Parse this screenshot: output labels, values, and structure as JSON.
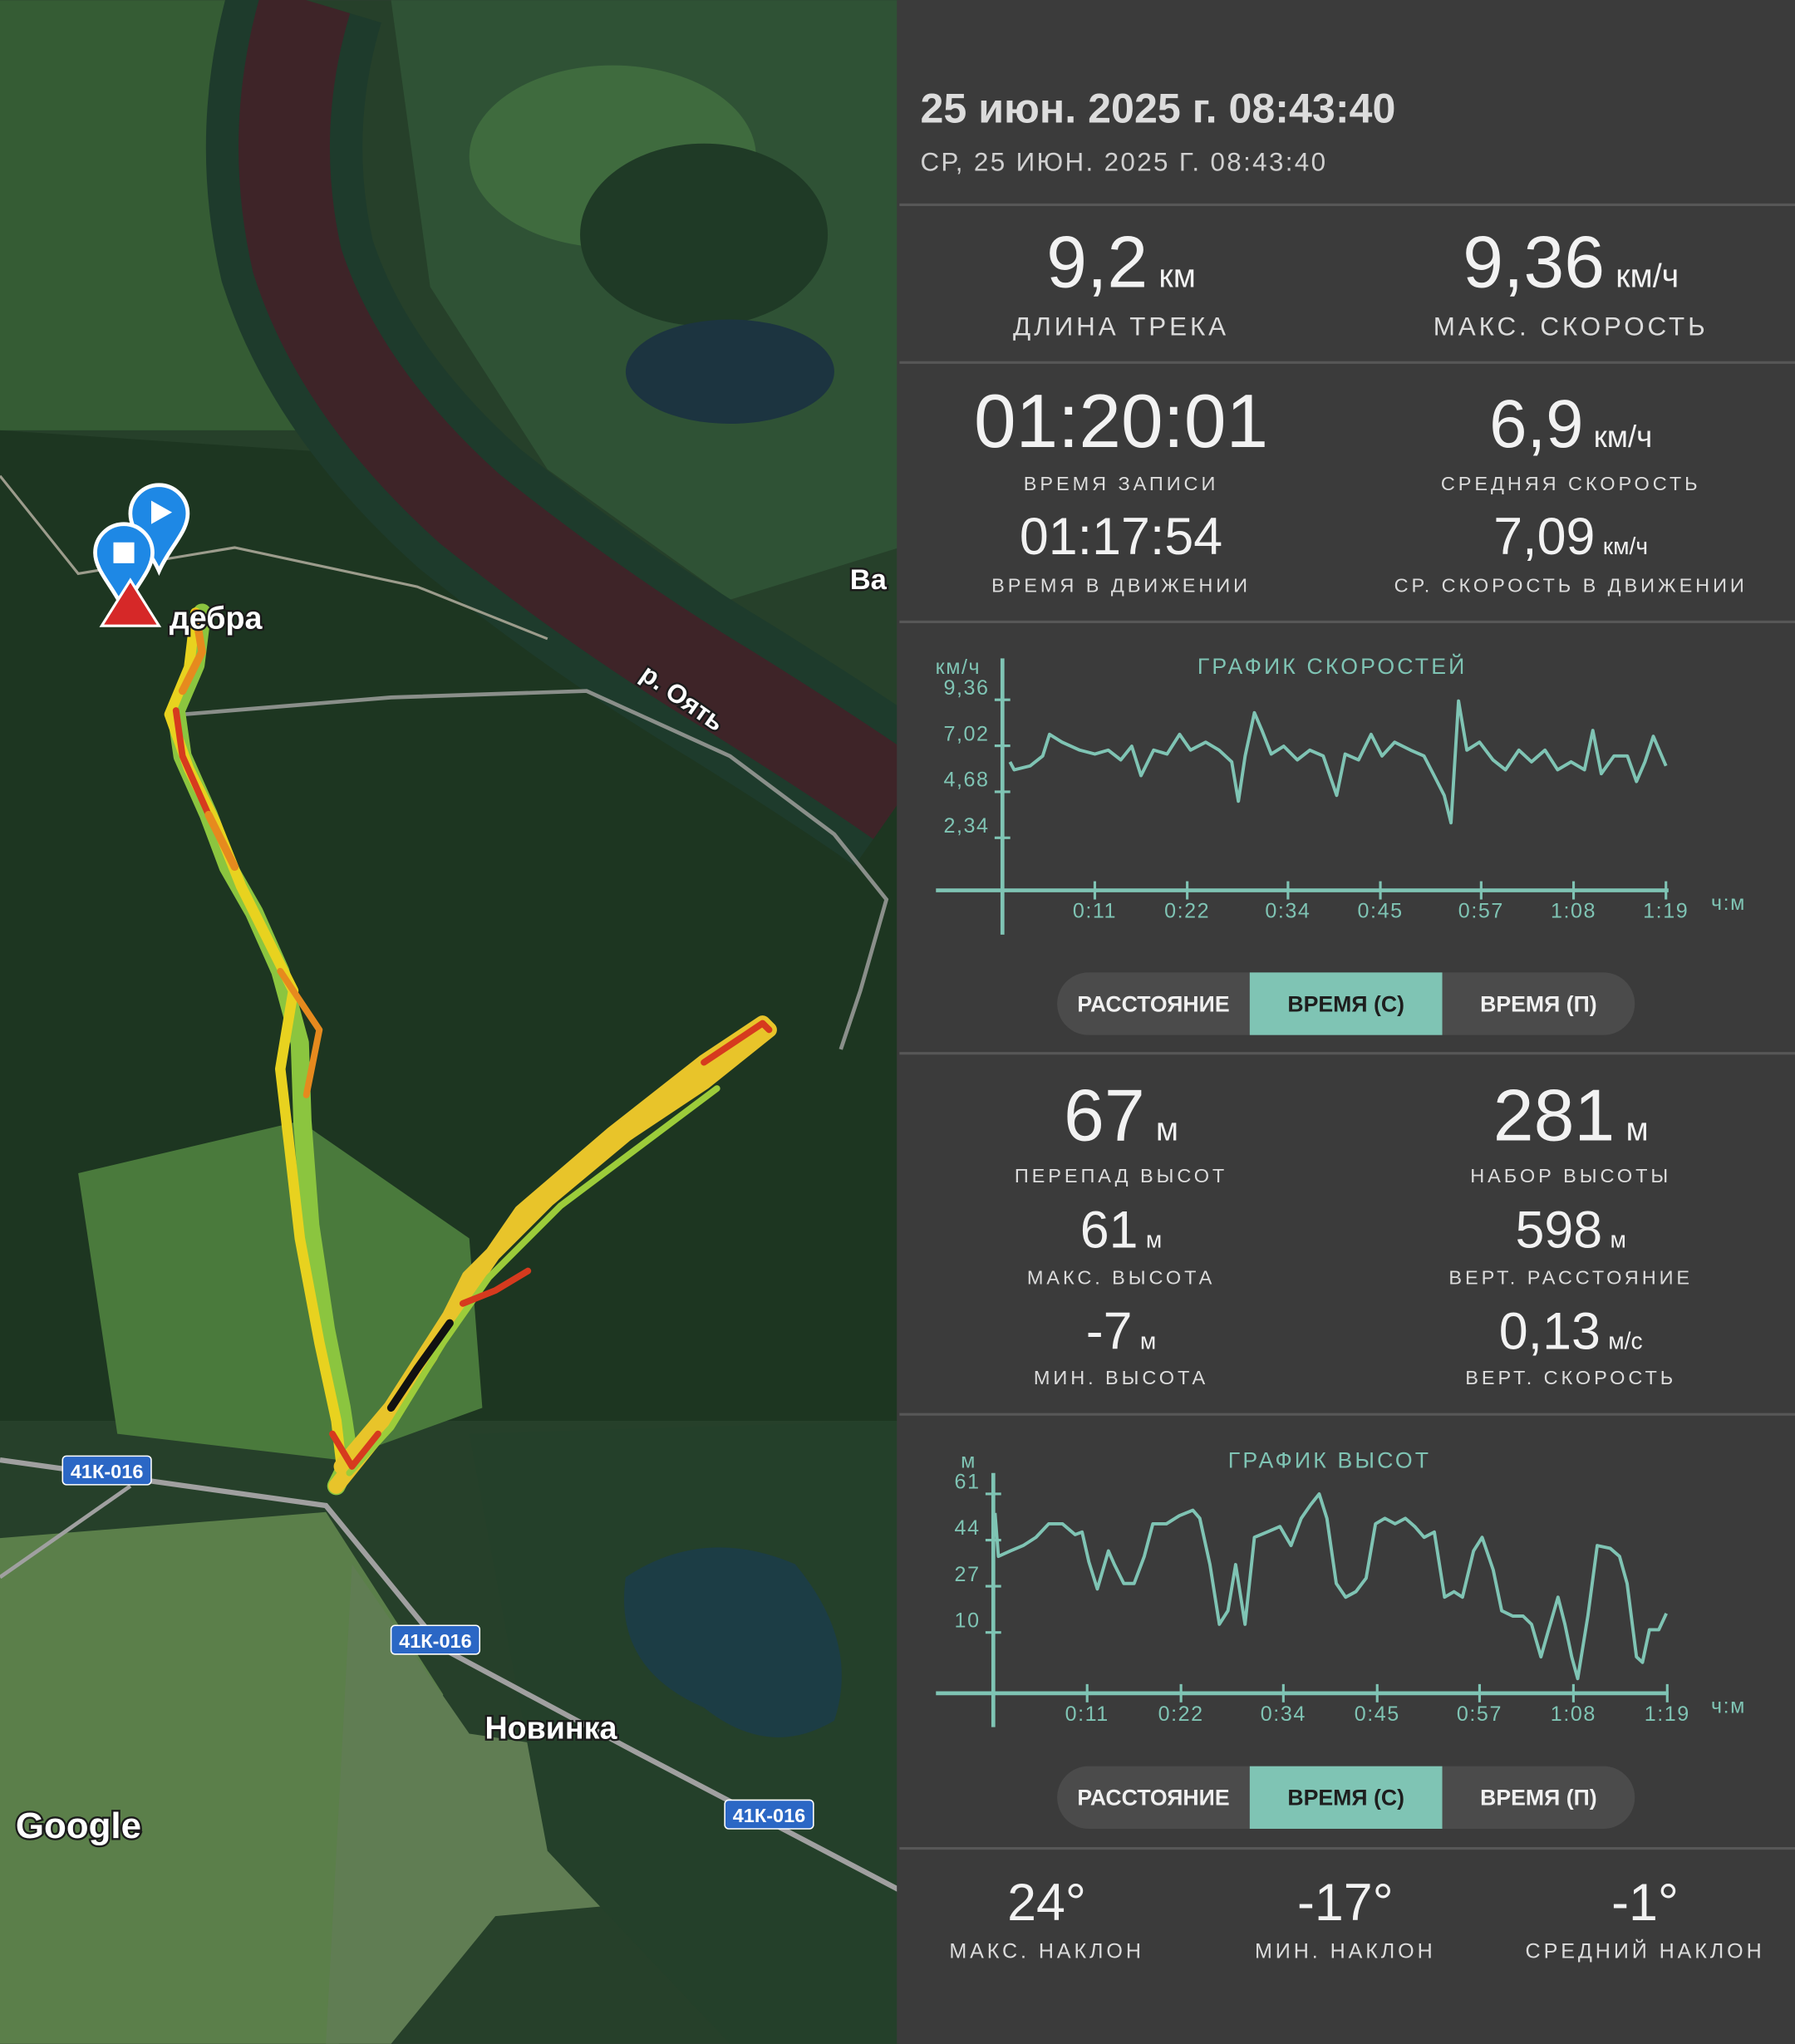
{
  "header": {
    "title": "25 июн. 2025 г. 08:43:40",
    "subtitle": "СР, 25 ИЮН. 2025 Г. 08:43:40"
  },
  "track_stats": [
    {
      "value": "9,2",
      "unit": "км",
      "label": "ДЛИНА ТРЕКА"
    },
    {
      "value": "9,36",
      "unit": "км/ч",
      "label": "МАКС. СКОРОСТЬ"
    }
  ],
  "time_stats": [
    {
      "value": "01:20:01",
      "label": "ВРЕМЯ ЗАПИСИ"
    },
    {
      "value": "6,9",
      "unit": "км/ч",
      "label": "СРЕДНЯЯ СКОРОСТЬ"
    },
    {
      "value": "01:17:54",
      "label": "ВРЕМЯ В ДВИЖЕНИИ"
    },
    {
      "value": "7,09",
      "unit": "км/ч",
      "label": "СР. СКОРОСТЬ В ДВИЖЕНИИ"
    }
  ],
  "elevation_stats": [
    {
      "value": "67",
      "unit": "м",
      "label": "ПЕРЕПАД ВЫСОТ"
    },
    {
      "value": "281",
      "unit": "м",
      "label": "НАБОР ВЫСОТЫ"
    },
    {
      "value": "61",
      "unit": "м",
      "label": "МАКС. ВЫСОТА"
    },
    {
      "value": "598",
      "unit": "м",
      "label": "ВЕРТ. РАССТОЯНИЕ"
    },
    {
      "value": "-7",
      "unit": "м",
      "label": "МИН. ВЫСОТА"
    },
    {
      "value": "0,13",
      "unit": "м/с",
      "label": "ВЕРТ. СКОРОСТЬ"
    }
  ],
  "slope_stats": [
    {
      "value": "24°",
      "label": "МАКС. НАКЛОН"
    },
    {
      "value": "-17°",
      "label": "МИН. НАКЛОН"
    },
    {
      "value": "-1°",
      "label": "СРЕДНИЙ НАКЛОН"
    }
  ],
  "map": {
    "places": [
      "дебра",
      "Ва",
      "р. Оять",
      "Новинка"
    ],
    "road_labels": [
      "41К-016",
      "41К-016",
      "41К-016"
    ],
    "attribution": "Google"
  },
  "chart_data": [
    {
      "type": "line",
      "title": "ГРАФИК СКОРОСТЕЙ",
      "ylabel": "км/ч",
      "xlabel": "ч:м",
      "color": "#7fc4b4",
      "xlim": [
        0,
        79
      ],
      "ylim": [
        0,
        11
      ],
      "xticks": [
        {
          "value": 11,
          "label": "0:11"
        },
        {
          "value": 22,
          "label": "0:22"
        },
        {
          "value": 34,
          "label": "0:34"
        },
        {
          "value": 45,
          "label": "0:45"
        },
        {
          "value": 57,
          "label": "0:57"
        },
        {
          "value": 68,
          "label": "1:08"
        },
        {
          "value": 79,
          "label": "1:19"
        }
      ],
      "yticks": [
        {
          "value": 2.34,
          "label": "2,34"
        },
        {
          "value": 4.68,
          "label": "4,68"
        },
        {
          "value": 7.02,
          "label": "7,02"
        },
        {
          "value": 9.36,
          "label": "9,36"
        }
      ],
      "x": [
        0.9,
        1.4,
        3.3,
        4.8,
        5.6,
        7.1,
        9.2,
        11.0,
        12.6,
        14.1,
        15.4,
        16.5,
        18.0,
        19.6,
        21.1,
        22.4,
        24.2,
        25.8,
        27.3,
        28.1,
        28.9,
        30.0,
        30.9,
        32.0,
        33.5,
        35.1,
        36.6,
        38.2,
        39.8,
        40.8,
        42.4,
        43.9,
        45.2,
        46.7,
        48.6,
        50.2,
        51.4,
        52.6,
        53.4,
        54.3,
        55.3,
        56.8,
        58.4,
        59.9,
        61.5,
        63.0,
        64.6,
        66.1,
        67.7,
        69.3,
        70.3,
        71.3,
        72.8,
        74.4,
        75.5,
        76.5,
        77.5,
        79.0
      ],
      "values": [
        6.2,
        5.8,
        6.0,
        6.5,
        7.6,
        7.2,
        6.8,
        6.6,
        6.8,
        6.3,
        7.0,
        5.5,
        6.8,
        6.6,
        7.6,
        6.8,
        7.2,
        6.8,
        6.2,
        4.2,
        6.5,
        8.7,
        7.8,
        6.6,
        7.0,
        6.3,
        6.8,
        6.5,
        4.5,
        6.6,
        6.3,
        7.6,
        6.5,
        7.2,
        6.8,
        6.5,
        5.5,
        4.5,
        3.1,
        9.3,
        6.8,
        7.2,
        6.3,
        5.8,
        6.8,
        6.2,
        6.8,
        5.8,
        6.2,
        5.8,
        7.8,
        5.6,
        6.5,
        6.5,
        5.2,
        6.2,
        7.5,
        6.0
      ],
      "modes": [
        "РАССТОЯНИЕ",
        "ВРЕМЯ (С)",
        "ВРЕМЯ (П)"
      ],
      "mode": 1
    },
    {
      "type": "line",
      "title": "ГРАФИК ВЫСОТ",
      "ylabel": "м",
      "xlabel": "ч:м",
      "color": "#7fc4b4",
      "xlim": [
        0,
        79
      ],
      "ylim": [
        -10,
        74
      ],
      "xticks": [
        {
          "value": 11,
          "label": "0:11"
        },
        {
          "value": 22,
          "label": "0:22"
        },
        {
          "value": 34,
          "label": "0:34"
        },
        {
          "value": 45,
          "label": "0:45"
        },
        {
          "value": 57,
          "label": "0:57"
        },
        {
          "value": 68,
          "label": "1:08"
        },
        {
          "value": 79,
          "label": "1:19"
        }
      ],
      "yticks": [
        10,
        27,
        44,
        61
      ],
      "x": [
        0.2,
        0.6,
        2.0,
        3.5,
        5.0,
        6.5,
        8.1,
        9.6,
        10.4,
        11.2,
        12.2,
        13.5,
        14.2,
        15.3,
        16.5,
        17.7,
        18.7,
        20.3,
        21.8,
        23.4,
        24.2,
        25.4,
        26.5,
        27.5,
        28.4,
        29.5,
        30.6,
        32.1,
        33.6,
        34.9,
        36.1,
        37.2,
        38.2,
        39.1,
        40.2,
        41.3,
        42.5,
        43.7,
        44.8,
        45.9,
        47.1,
        48.3,
        49.4,
        50.5,
        51.7,
        52.9,
        54.0,
        55.0,
        56.3,
        57.3,
        58.6,
        59.6,
        60.9,
        62.1,
        63.1,
        64.2,
        65.1,
        66.2,
        67.0,
        67.8,
        68.5,
        69.7,
        70.8,
        72.3,
        73.4,
        74.3,
        75.4,
        76.1,
        76.9,
        78.0,
        78.9
      ],
      "values": [
        54,
        38,
        40,
        42,
        45,
        50,
        50,
        46,
        47,
        36,
        26,
        40,
        35,
        28,
        28,
        38,
        50,
        50,
        53,
        55,
        52,
        35,
        13,
        18,
        35,
        13,
        45,
        47,
        49,
        42,
        52,
        57,
        61,
        52,
        28,
        23,
        25,
        30,
        50,
        52,
        50,
        52,
        49,
        45,
        47,
        23,
        25,
        23,
        40,
        45,
        33,
        18,
        16,
        16,
        13,
        1,
        11,
        23,
        13,
        1,
        -7,
        16,
        42,
        41,
        38,
        28,
        1,
        -1,
        11,
        11,
        17
      ],
      "modes": [
        "РАССТОЯНИЕ",
        "ВРЕМЯ (С)",
        "ВРЕМЯ (П)"
      ],
      "mode": 1
    }
  ]
}
